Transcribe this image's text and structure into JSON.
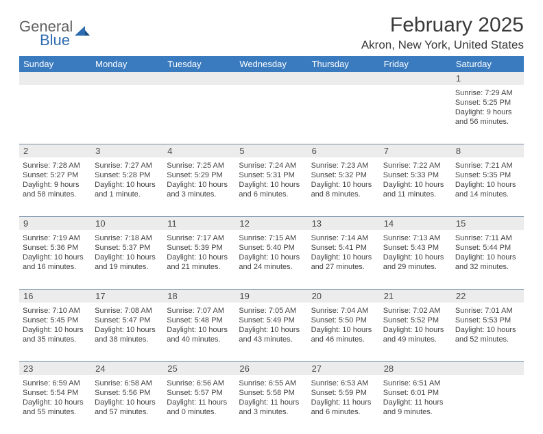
{
  "logo": {
    "line1": "General",
    "line2": "Blue"
  },
  "title": "February 2025",
  "location": "Akron, New York, United States",
  "colors": {
    "header_bg": "#3a7bbf",
    "header_text": "#ffffff",
    "daynum_bg": "#ececec",
    "week_divider": "#6f88a2",
    "body_text": "#414141",
    "logo_blue": "#2d6bb0",
    "logo_gray": "#616161"
  },
  "day_headers": [
    "Sunday",
    "Monday",
    "Tuesday",
    "Wednesday",
    "Thursday",
    "Friday",
    "Saturday"
  ],
  "weeks": [
    [
      {
        "n": "",
        "sr": "",
        "ss": "",
        "dl1": "",
        "dl2": ""
      },
      {
        "n": "",
        "sr": "",
        "ss": "",
        "dl1": "",
        "dl2": ""
      },
      {
        "n": "",
        "sr": "",
        "ss": "",
        "dl1": "",
        "dl2": ""
      },
      {
        "n": "",
        "sr": "",
        "ss": "",
        "dl1": "",
        "dl2": ""
      },
      {
        "n": "",
        "sr": "",
        "ss": "",
        "dl1": "",
        "dl2": ""
      },
      {
        "n": "",
        "sr": "",
        "ss": "",
        "dl1": "",
        "dl2": ""
      },
      {
        "n": "1",
        "sr": "Sunrise: 7:29 AM",
        "ss": "Sunset: 5:25 PM",
        "dl1": "Daylight: 9 hours",
        "dl2": "and 56 minutes."
      }
    ],
    [
      {
        "n": "2",
        "sr": "Sunrise: 7:28 AM",
        "ss": "Sunset: 5:27 PM",
        "dl1": "Daylight: 9 hours",
        "dl2": "and 58 minutes."
      },
      {
        "n": "3",
        "sr": "Sunrise: 7:27 AM",
        "ss": "Sunset: 5:28 PM",
        "dl1": "Daylight: 10 hours",
        "dl2": "and 1 minute."
      },
      {
        "n": "4",
        "sr": "Sunrise: 7:25 AM",
        "ss": "Sunset: 5:29 PM",
        "dl1": "Daylight: 10 hours",
        "dl2": "and 3 minutes."
      },
      {
        "n": "5",
        "sr": "Sunrise: 7:24 AM",
        "ss": "Sunset: 5:31 PM",
        "dl1": "Daylight: 10 hours",
        "dl2": "and 6 minutes."
      },
      {
        "n": "6",
        "sr": "Sunrise: 7:23 AM",
        "ss": "Sunset: 5:32 PM",
        "dl1": "Daylight: 10 hours",
        "dl2": "and 8 minutes."
      },
      {
        "n": "7",
        "sr": "Sunrise: 7:22 AM",
        "ss": "Sunset: 5:33 PM",
        "dl1": "Daylight: 10 hours",
        "dl2": "and 11 minutes."
      },
      {
        "n": "8",
        "sr": "Sunrise: 7:21 AM",
        "ss": "Sunset: 5:35 PM",
        "dl1": "Daylight: 10 hours",
        "dl2": "and 14 minutes."
      }
    ],
    [
      {
        "n": "9",
        "sr": "Sunrise: 7:19 AM",
        "ss": "Sunset: 5:36 PM",
        "dl1": "Daylight: 10 hours",
        "dl2": "and 16 minutes."
      },
      {
        "n": "10",
        "sr": "Sunrise: 7:18 AM",
        "ss": "Sunset: 5:37 PM",
        "dl1": "Daylight: 10 hours",
        "dl2": "and 19 minutes."
      },
      {
        "n": "11",
        "sr": "Sunrise: 7:17 AM",
        "ss": "Sunset: 5:39 PM",
        "dl1": "Daylight: 10 hours",
        "dl2": "and 21 minutes."
      },
      {
        "n": "12",
        "sr": "Sunrise: 7:15 AM",
        "ss": "Sunset: 5:40 PM",
        "dl1": "Daylight: 10 hours",
        "dl2": "and 24 minutes."
      },
      {
        "n": "13",
        "sr": "Sunrise: 7:14 AM",
        "ss": "Sunset: 5:41 PM",
        "dl1": "Daylight: 10 hours",
        "dl2": "and 27 minutes."
      },
      {
        "n": "14",
        "sr": "Sunrise: 7:13 AM",
        "ss": "Sunset: 5:43 PM",
        "dl1": "Daylight: 10 hours",
        "dl2": "and 29 minutes."
      },
      {
        "n": "15",
        "sr": "Sunrise: 7:11 AM",
        "ss": "Sunset: 5:44 PM",
        "dl1": "Daylight: 10 hours",
        "dl2": "and 32 minutes."
      }
    ],
    [
      {
        "n": "16",
        "sr": "Sunrise: 7:10 AM",
        "ss": "Sunset: 5:45 PM",
        "dl1": "Daylight: 10 hours",
        "dl2": "and 35 minutes."
      },
      {
        "n": "17",
        "sr": "Sunrise: 7:08 AM",
        "ss": "Sunset: 5:47 PM",
        "dl1": "Daylight: 10 hours",
        "dl2": "and 38 minutes."
      },
      {
        "n": "18",
        "sr": "Sunrise: 7:07 AM",
        "ss": "Sunset: 5:48 PM",
        "dl1": "Daylight: 10 hours",
        "dl2": "and 40 minutes."
      },
      {
        "n": "19",
        "sr": "Sunrise: 7:05 AM",
        "ss": "Sunset: 5:49 PM",
        "dl1": "Daylight: 10 hours",
        "dl2": "and 43 minutes."
      },
      {
        "n": "20",
        "sr": "Sunrise: 7:04 AM",
        "ss": "Sunset: 5:50 PM",
        "dl1": "Daylight: 10 hours",
        "dl2": "and 46 minutes."
      },
      {
        "n": "21",
        "sr": "Sunrise: 7:02 AM",
        "ss": "Sunset: 5:52 PM",
        "dl1": "Daylight: 10 hours",
        "dl2": "and 49 minutes."
      },
      {
        "n": "22",
        "sr": "Sunrise: 7:01 AM",
        "ss": "Sunset: 5:53 PM",
        "dl1": "Daylight: 10 hours",
        "dl2": "and 52 minutes."
      }
    ],
    [
      {
        "n": "23",
        "sr": "Sunrise: 6:59 AM",
        "ss": "Sunset: 5:54 PM",
        "dl1": "Daylight: 10 hours",
        "dl2": "and 55 minutes."
      },
      {
        "n": "24",
        "sr": "Sunrise: 6:58 AM",
        "ss": "Sunset: 5:56 PM",
        "dl1": "Daylight: 10 hours",
        "dl2": "and 57 minutes."
      },
      {
        "n": "25",
        "sr": "Sunrise: 6:56 AM",
        "ss": "Sunset: 5:57 PM",
        "dl1": "Daylight: 11 hours",
        "dl2": "and 0 minutes."
      },
      {
        "n": "26",
        "sr": "Sunrise: 6:55 AM",
        "ss": "Sunset: 5:58 PM",
        "dl1": "Daylight: 11 hours",
        "dl2": "and 3 minutes."
      },
      {
        "n": "27",
        "sr": "Sunrise: 6:53 AM",
        "ss": "Sunset: 5:59 PM",
        "dl1": "Daylight: 11 hours",
        "dl2": "and 6 minutes."
      },
      {
        "n": "28",
        "sr": "Sunrise: 6:51 AM",
        "ss": "Sunset: 6:01 PM",
        "dl1": "Daylight: 11 hours",
        "dl2": "and 9 minutes."
      },
      {
        "n": "",
        "sr": "",
        "ss": "",
        "dl1": "",
        "dl2": ""
      }
    ]
  ]
}
